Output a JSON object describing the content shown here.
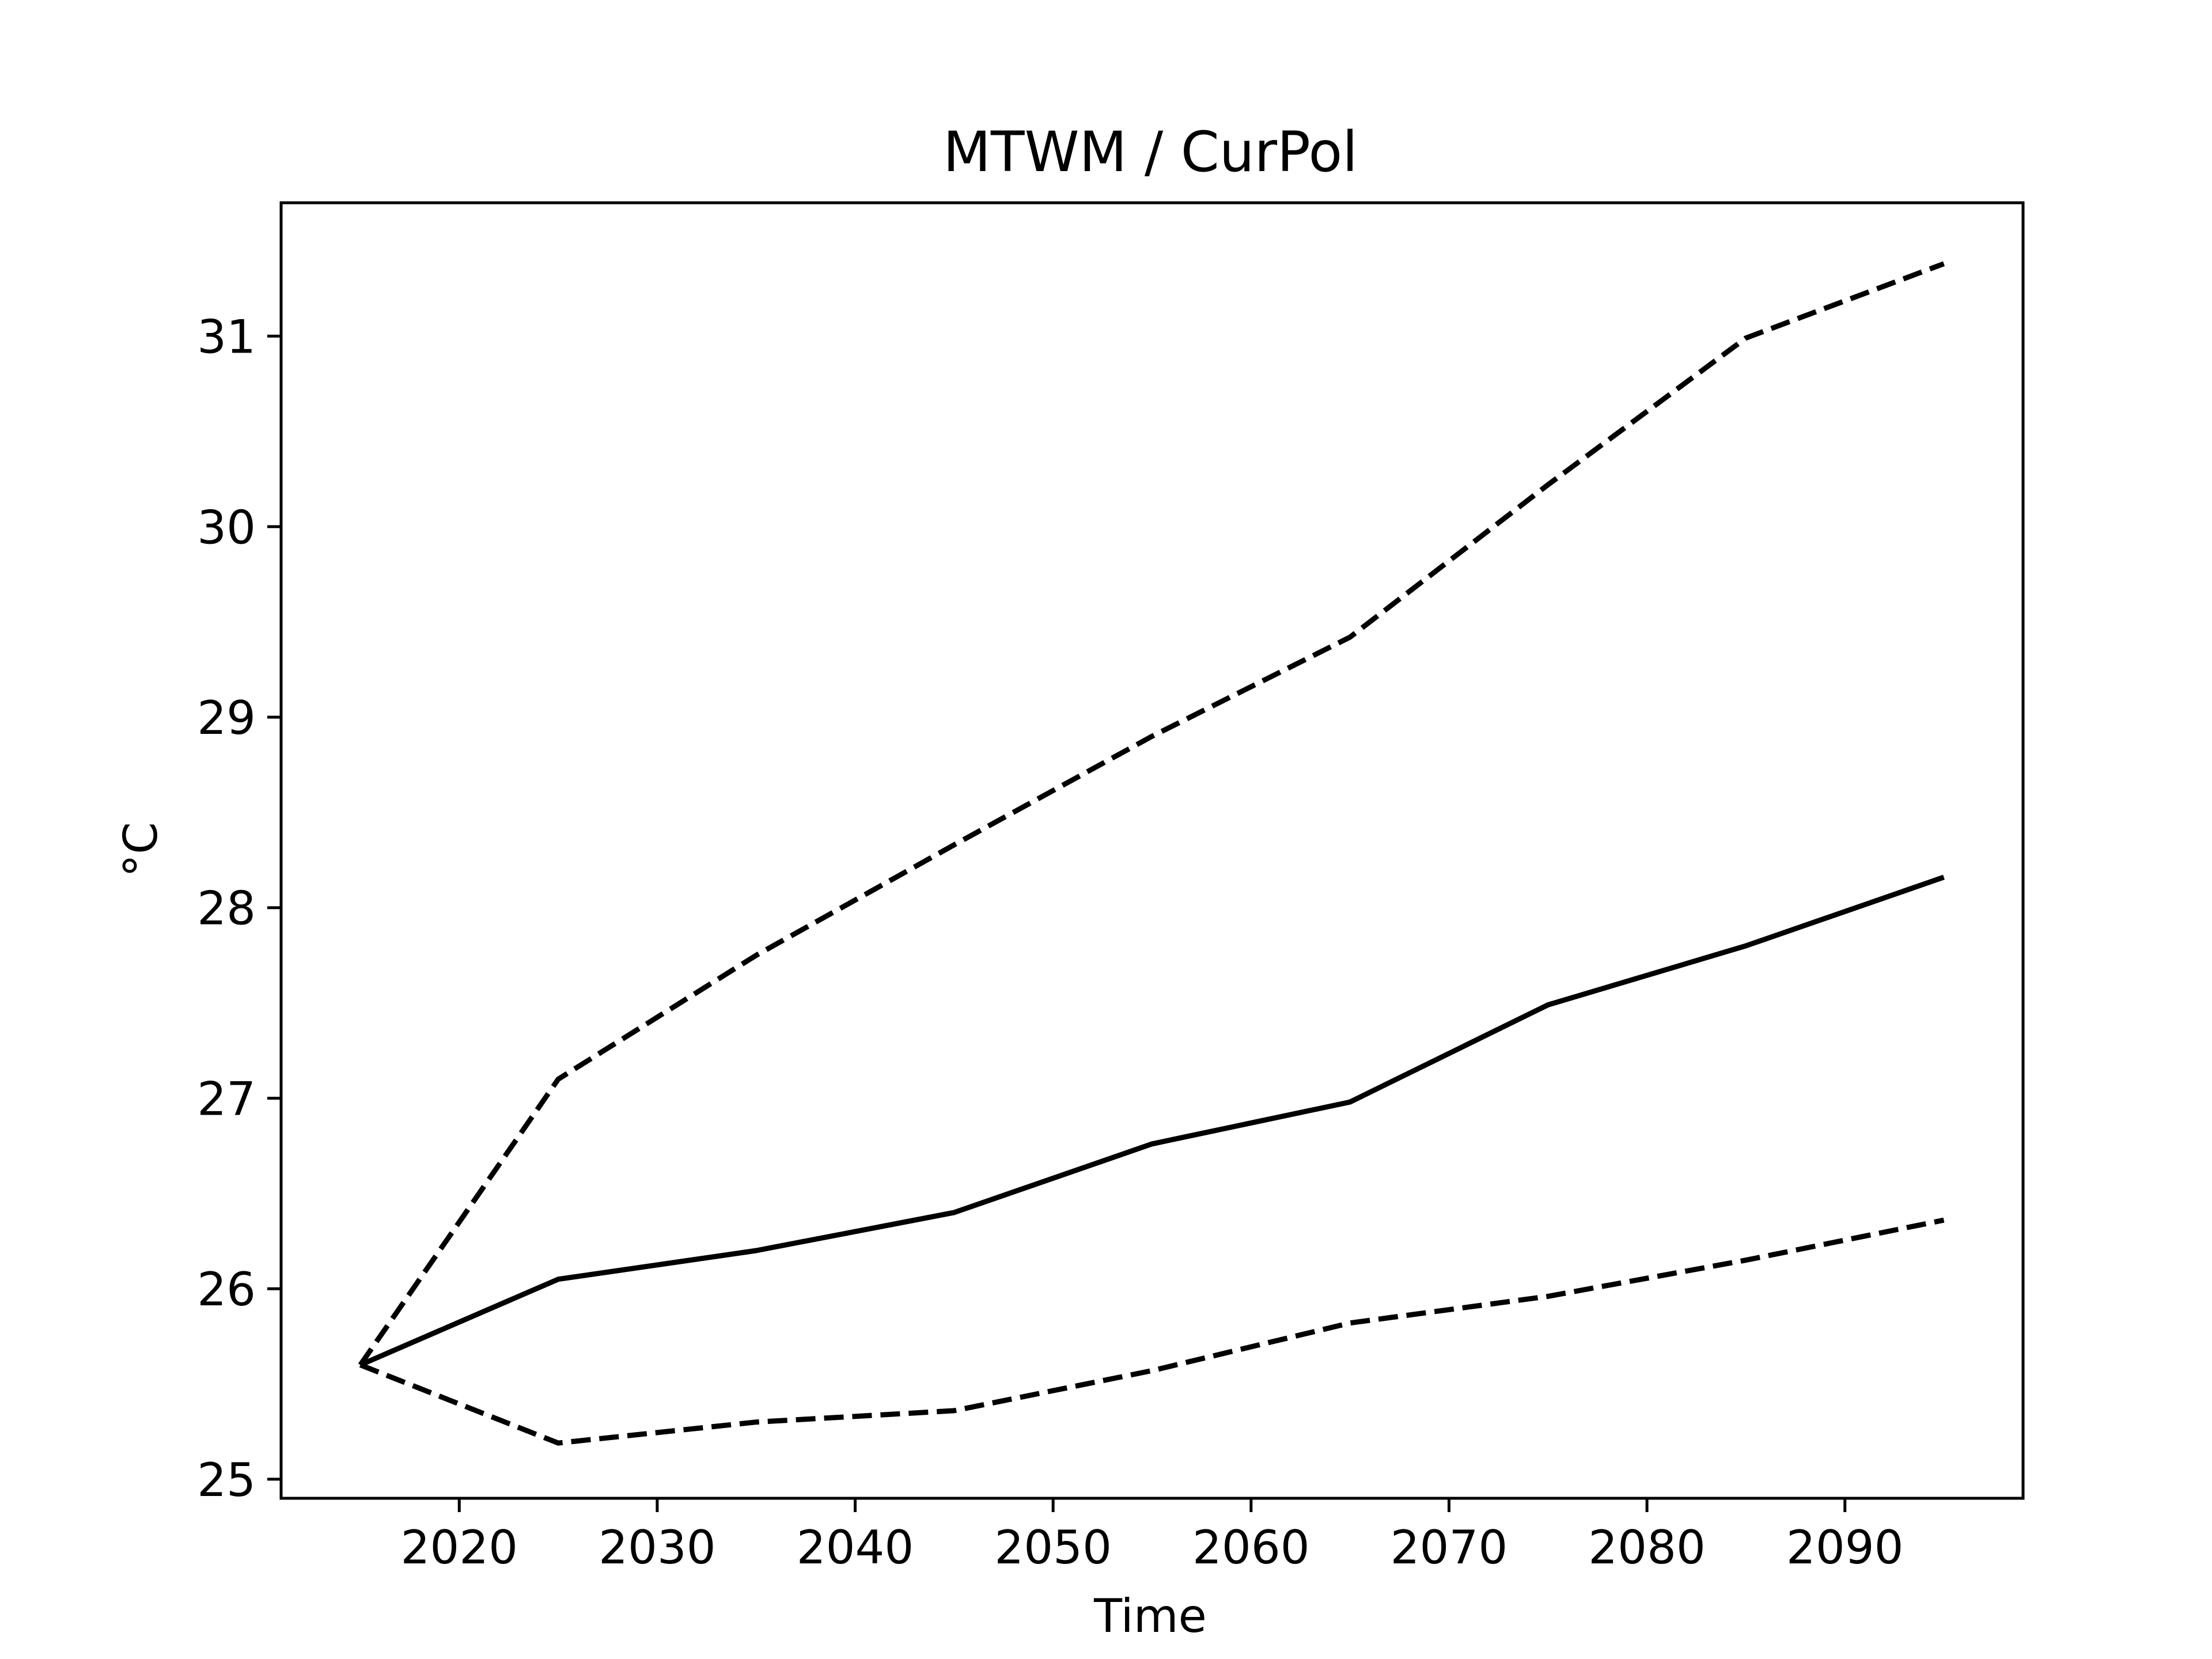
{
  "chart_data": {
    "type": "line",
    "title": "MTWM / CurPol",
    "xlabel": "Time",
    "ylabel": "°C",
    "xlim": [
      2011,
      2099
    ],
    "ylim": [
      24.9,
      31.7
    ],
    "xticks": [
      2020,
      2030,
      2040,
      2050,
      2060,
      2070,
      2080,
      2090
    ],
    "yticks": [
      25,
      26,
      27,
      28,
      29,
      30,
      31
    ],
    "grid": false,
    "legend": "none",
    "x": [
      2015,
      2025,
      2035,
      2045,
      2055,
      2065,
      2075,
      2085,
      2095
    ],
    "series": [
      {
        "style": "solid",
        "color": "#000000",
        "values": [
          25.6,
          26.05,
          26.2,
          26.4,
          26.76,
          26.98,
          27.49,
          27.8,
          28.16
        ]
      },
      {
        "style": "dashed",
        "color": "#000000",
        "values": [
          25.6,
          27.1,
          27.75,
          28.33,
          28.9,
          29.42,
          30.22,
          30.99,
          31.38
        ]
      },
      {
        "style": "dashed",
        "color": "#000000",
        "values": [
          25.6,
          25.19,
          25.3,
          25.36,
          25.57,
          25.82,
          25.96,
          26.15,
          26.36
        ]
      }
    ]
  }
}
